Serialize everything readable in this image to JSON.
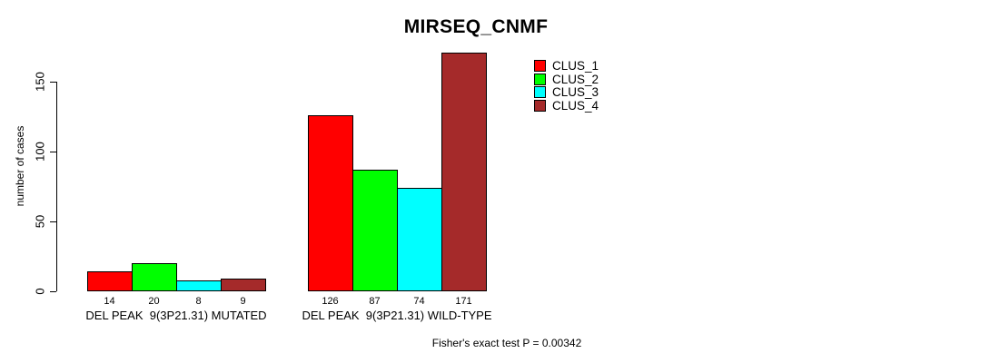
{
  "chart_data": {
    "type": "bar",
    "title": "MIRSEQ_CNMF",
    "ylabel": "number of cases",
    "xlabel": "",
    "ylim": [
      0,
      175
    ],
    "yticks": [
      "0",
      "50",
      "100",
      "150"
    ],
    "grid": false,
    "legend_position": "inside-top-right",
    "categories": [
      "DEL PEAK  9(3P21.31) MUTATED",
      "DEL PEAK  9(3P21.31) WILD-TYPE"
    ],
    "series": [
      {
        "name": "CLUS_1",
        "color": "#FF0000",
        "values": [
          14,
          126
        ]
      },
      {
        "name": "CLUS_2",
        "color": "#00FF00",
        "values": [
          20,
          87
        ]
      },
      {
        "name": "CLUS_3",
        "color": "#00FFFF",
        "values": [
          8,
          74
        ]
      },
      {
        "name": "CLUS_4",
        "color": "#A52A2A",
        "values": [
          9,
          171
        ]
      }
    ],
    "bar_value_labels": [
      [
        "14",
        "20",
        "8",
        "9"
      ],
      [
        "126",
        "87",
        "74",
        "171"
      ]
    ],
    "annotation": "Fisher's exact test P = 0.00342"
  }
}
